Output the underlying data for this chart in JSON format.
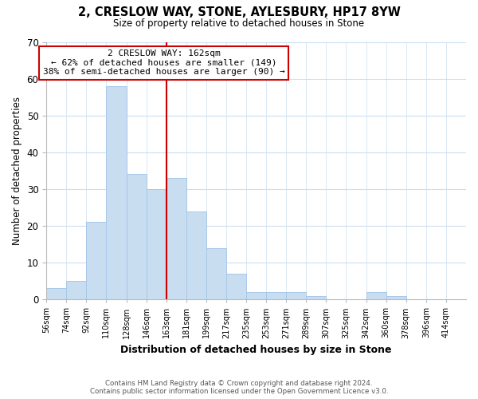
{
  "title": "2, CRESLOW WAY, STONE, AYLESBURY, HP17 8YW",
  "subtitle": "Size of property relative to detached houses in Stone",
  "xlabel": "Distribution of detached houses by size in Stone",
  "ylabel": "Number of detached properties",
  "bin_labels": [
    "56sqm",
    "74sqm",
    "92sqm",
    "110sqm",
    "128sqm",
    "146sqm",
    "163sqm",
    "181sqm",
    "199sqm",
    "217sqm",
    "235sqm",
    "253sqm",
    "271sqm",
    "289sqm",
    "307sqm",
    "325sqm",
    "342sqm",
    "360sqm",
    "378sqm",
    "396sqm",
    "414sqm"
  ],
  "bar_heights": [
    3,
    5,
    21,
    58,
    34,
    30,
    33,
    24,
    14,
    7,
    2,
    2,
    2,
    1,
    0,
    0,
    2,
    1,
    0,
    0,
    0
  ],
  "bar_color": "#c8ddf0",
  "bar_edge_color": "#a8c8e8",
  "vline_x": 6,
  "vline_color": "#cc0000",
  "annotation_title": "2 CRESLOW WAY: 162sqm",
  "annotation_line1": "← 62% of detached houses are smaller (149)",
  "annotation_line2": "38% of semi-detached houses are larger (90) →",
  "annotation_box_color": "#ffffff",
  "annotation_box_edge": "#cc0000",
  "ylim": [
    0,
    70
  ],
  "yticks": [
    0,
    10,
    20,
    30,
    40,
    50,
    60,
    70
  ],
  "footer_line1": "Contains HM Land Registry data © Crown copyright and database right 2024.",
  "footer_line2": "Contains public sector information licensed under the Open Government Licence v3.0.",
  "background_color": "#ffffff",
  "grid_color": "#ccdff0"
}
